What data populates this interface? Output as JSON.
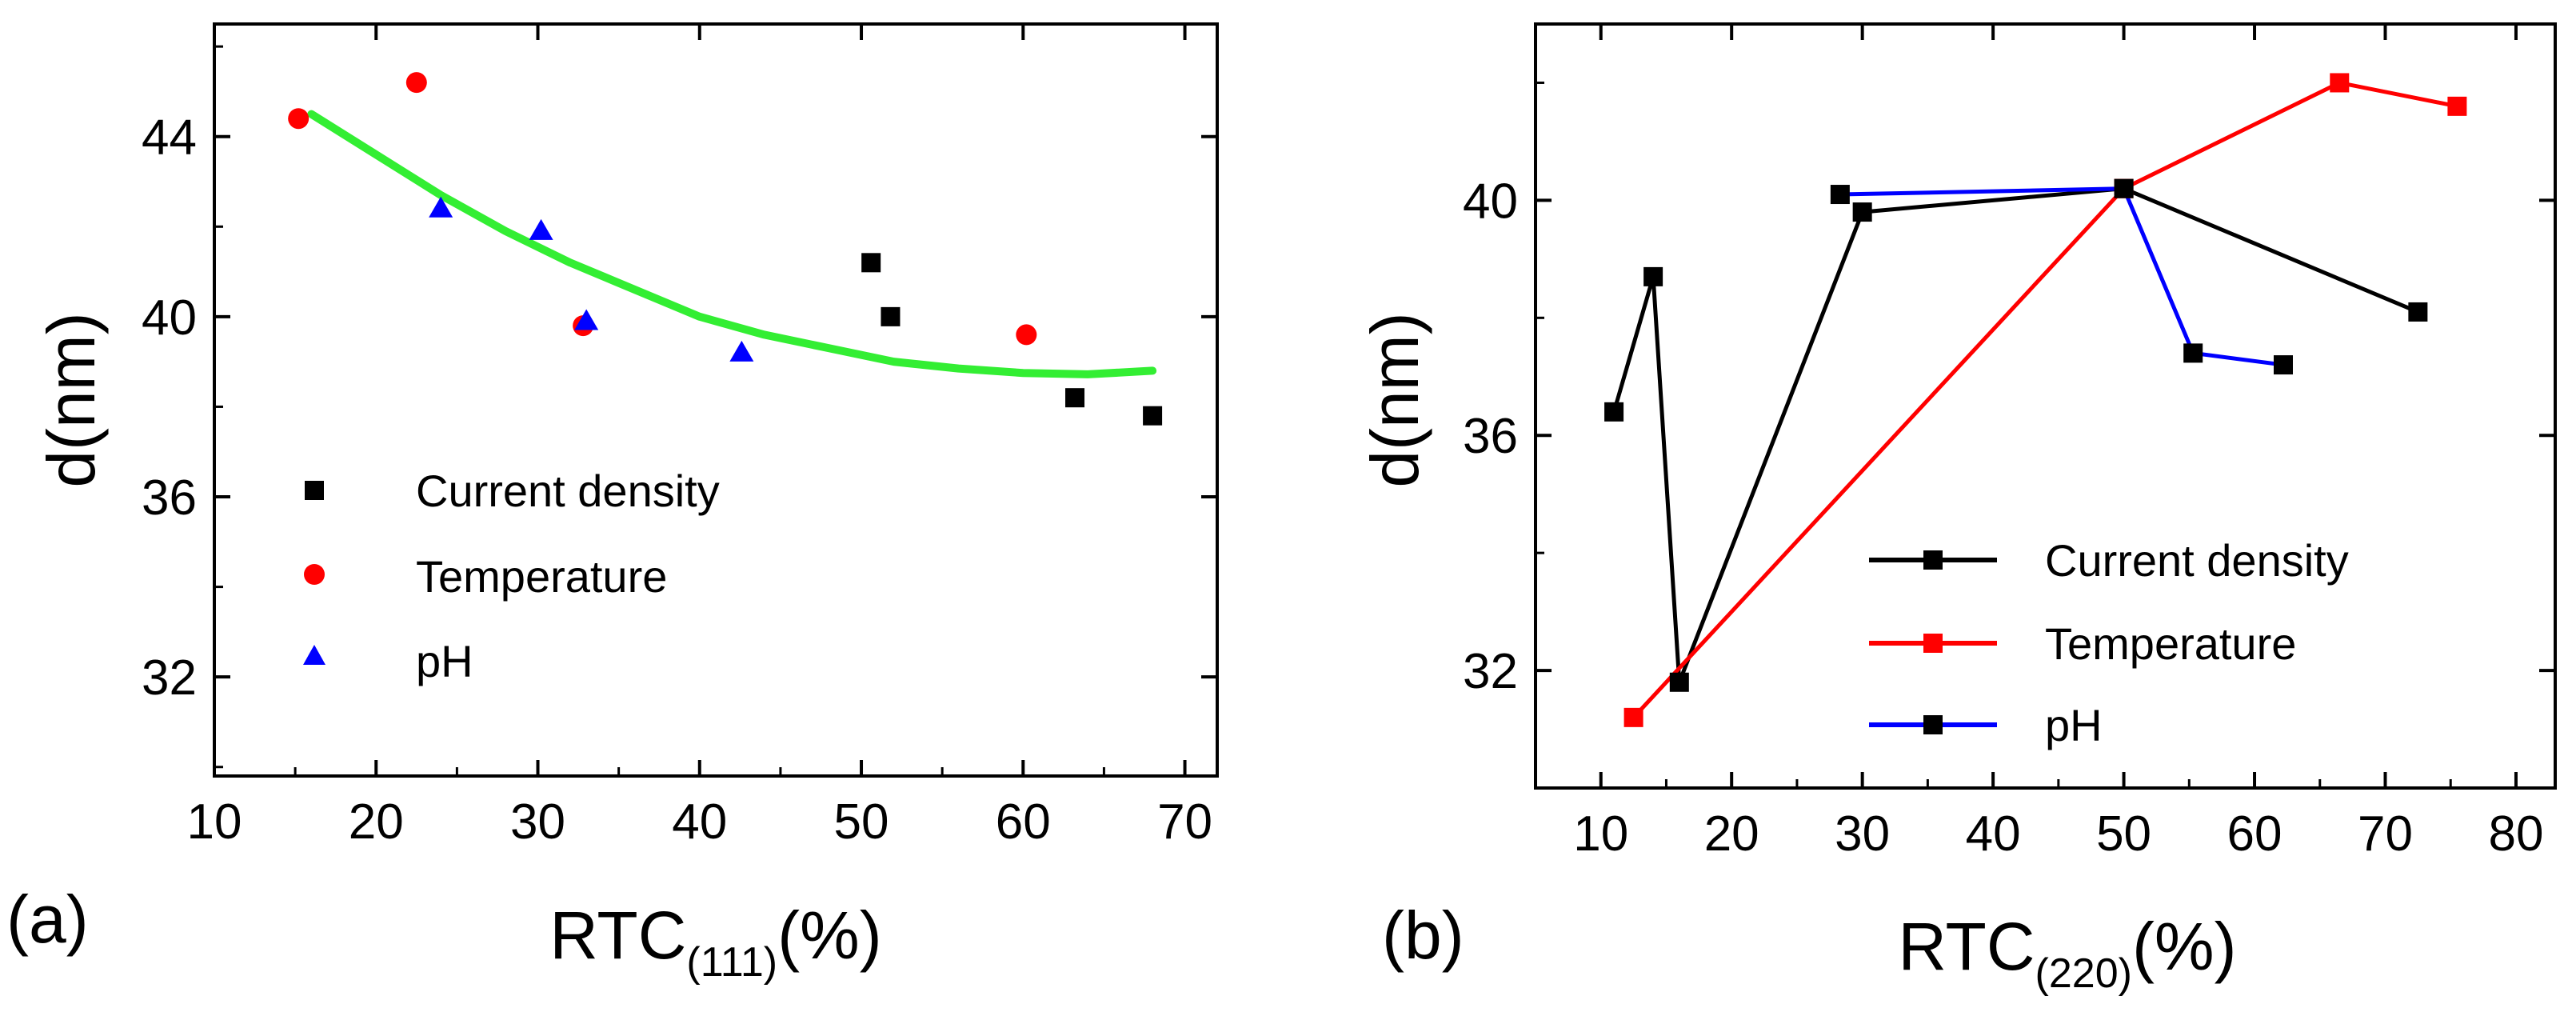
{
  "chart_data": [
    {
      "panel": "(a)",
      "type": "scatter",
      "xlabel": {
        "main": "RTC",
        "sub": "(111)",
        "suffix": "(%)"
      },
      "ylabel": "d(nm)",
      "xlim": [
        10,
        72
      ],
      "ylim": [
        29.8,
        46.5
      ],
      "xticks": [
        10,
        20,
        30,
        40,
        50,
        60,
        70
      ],
      "yticks": [
        32,
        36,
        40,
        44
      ],
      "legend_position": "bottom-left",
      "series": [
        {
          "name": "Current density",
          "marker": "square",
          "color": "#000000",
          "points": [
            [
              50.6,
              41.2
            ],
            [
              51.8,
              40.0
            ],
            [
              63.2,
              38.2
            ],
            [
              68.0,
              37.8
            ]
          ]
        },
        {
          "name": "Temperature",
          "marker": "circle",
          "color": "#ff0000",
          "points": [
            [
              15.2,
              44.4
            ],
            [
              22.5,
              45.2
            ],
            [
              32.8,
              39.8
            ],
            [
              60.2,
              39.6
            ]
          ]
        },
        {
          "name": "pH",
          "marker": "triangle",
          "color": "#0000ff",
          "points": [
            [
              24.0,
              42.4
            ],
            [
              30.2,
              41.9
            ],
            [
              33.0,
              39.9
            ],
            [
              42.6,
              39.2
            ]
          ]
        }
      ],
      "fit": {
        "name": "fit",
        "color": "#33ee33",
        "points": [
          [
            16,
            44.5
          ],
          [
            20,
            43.6
          ],
          [
            24,
            42.7
          ],
          [
            28,
            41.9
          ],
          [
            32,
            41.2
          ],
          [
            36,
            40.6
          ],
          [
            40,
            40.0
          ],
          [
            44,
            39.6
          ],
          [
            48,
            39.3
          ],
          [
            52,
            39.0
          ],
          [
            56,
            38.85
          ],
          [
            60,
            38.75
          ],
          [
            64,
            38.72
          ],
          [
            68,
            38.8
          ]
        ]
      }
    },
    {
      "panel": "(b)",
      "type": "line",
      "xlabel": {
        "main": "RTC",
        "sub": "(220)",
        "suffix": "(%)"
      },
      "ylabel": "d(nm)",
      "xlim": [
        5,
        83
      ],
      "ylim": [
        30,
        43
      ],
      "xticks": [
        10,
        20,
        30,
        40,
        50,
        60,
        70,
        80
      ],
      "yticks": [
        32,
        36,
        40
      ],
      "legend_position": "bottom-right",
      "series": [
        {
          "name": "Current density",
          "color": "#000000",
          "marker_color": "#000000",
          "points": [
            [
              11.0,
              36.4
            ],
            [
              14.0,
              38.7
            ],
            [
              16.0,
              31.8
            ],
            [
              30.0,
              39.8
            ],
            [
              50.0,
              40.2
            ],
            [
              72.5,
              38.1
            ]
          ]
        },
        {
          "name": "Temperature",
          "color": "#ff0000",
          "marker_color": "#ff0000",
          "points": [
            [
              12.5,
              31.2
            ],
            [
              50.0,
              40.2
            ],
            [
              66.5,
              42.0
            ],
            [
              75.5,
              41.6
            ]
          ]
        },
        {
          "name": "pH",
          "color": "#0000ff",
          "marker_color": "#000000",
          "points": [
            [
              28.3,
              40.1
            ],
            [
              50.0,
              40.2
            ],
            [
              55.3,
              37.4
            ],
            [
              62.2,
              37.2
            ]
          ]
        }
      ]
    }
  ]
}
